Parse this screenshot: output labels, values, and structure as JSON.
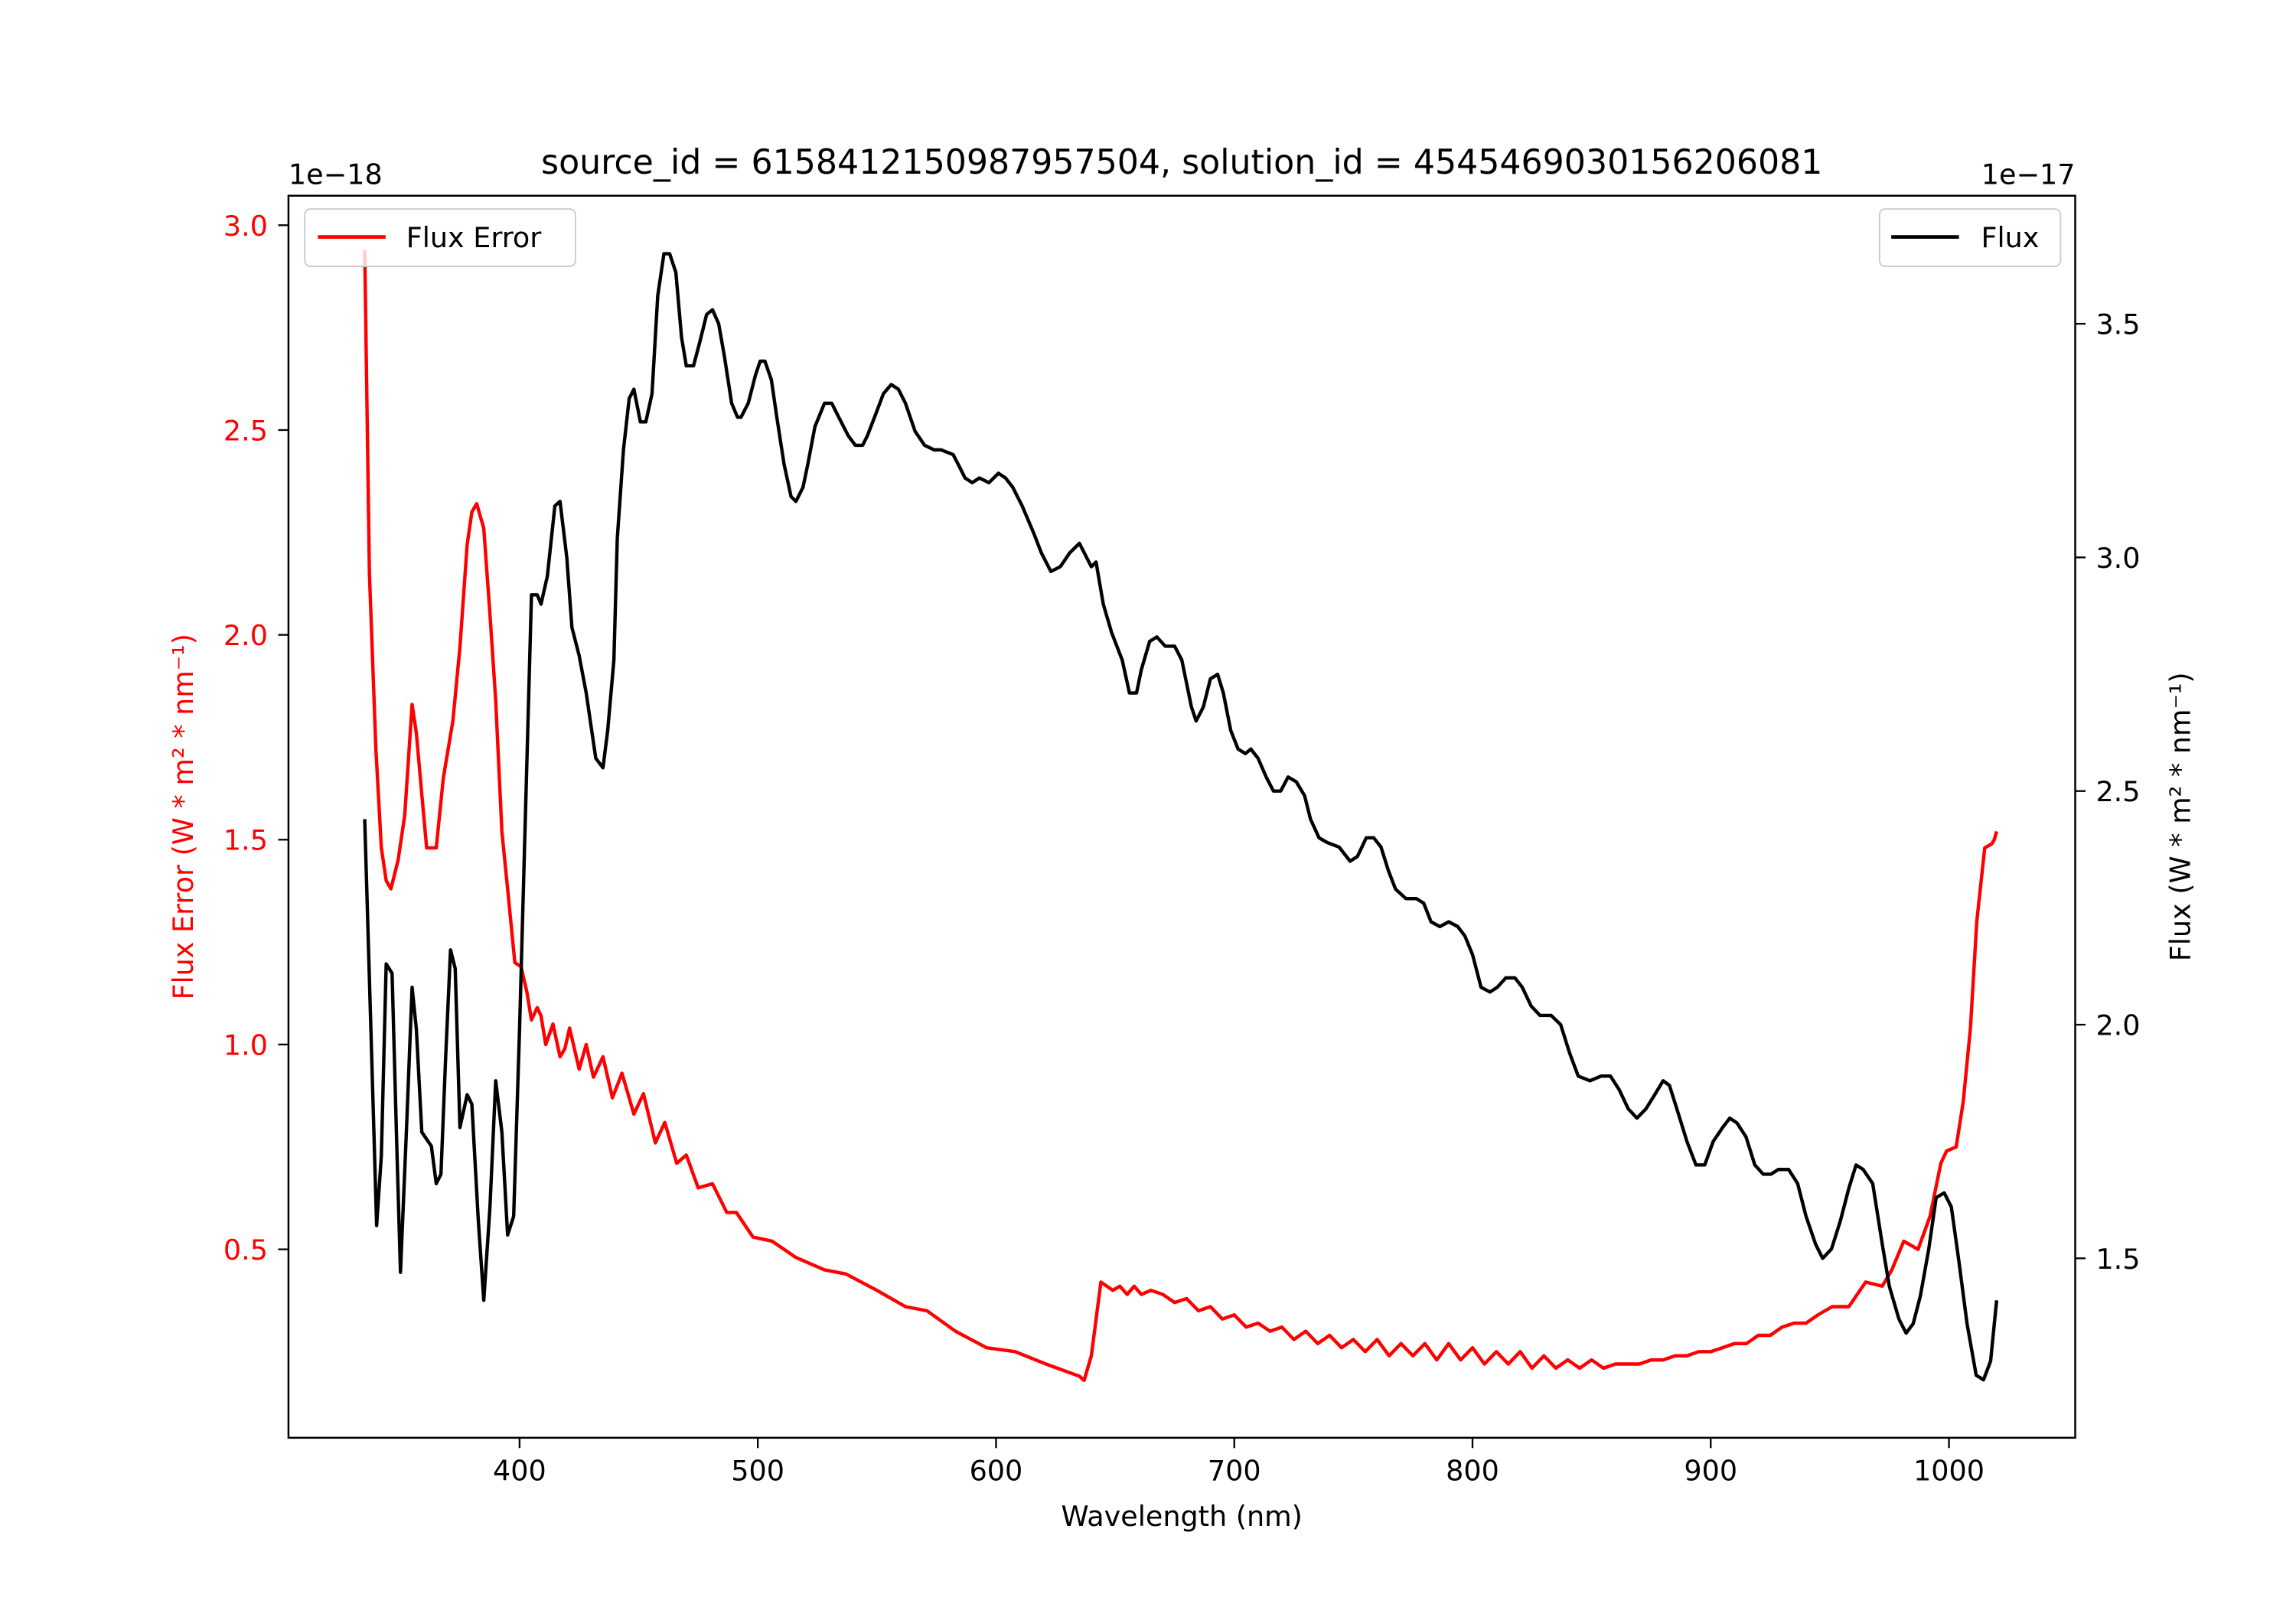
{
  "chart_data": {
    "type": "line",
    "title": "source_id = 6158412150987957504, solution_id = 4545469030156206081",
    "xlabel": "Wavelength (nm)",
    "xlim": [
      303,
      1053
    ],
    "xticks": [
      400,
      500,
      600,
      700,
      800,
      900,
      1000
    ],
    "grid": false,
    "left_axis": {
      "ylabel": "Flux Error (W * m² * nm⁻¹)",
      "offset_text": "1e−18",
      "ylim": [
        0.04,
        3.072
      ],
      "yticks": [
        0.5,
        1.0,
        1.5,
        2.0,
        2.5,
        3.0
      ],
      "ytick_labels": [
        "0.5",
        "1.0",
        "1.5",
        "2.0",
        "2.5",
        "3.0"
      ],
      "color": "#ff0000"
    },
    "right_axis": {
      "ylabel": "Flux (W * m² * nm⁻¹)",
      "offset_text": "1e−17",
      "ylim": [
        1.116,
        3.774
      ],
      "yticks": [
        1.5,
        2.0,
        2.5,
        3.0,
        3.5
      ],
      "ytick_labels": [
        "1.5",
        "2.0",
        "2.5",
        "3.0",
        "3.5"
      ],
      "color": "#000000"
    },
    "series": [
      {
        "name": "Flux Error",
        "axis": "left",
        "color": "#ff0000",
        "legend": "top-left",
        "x": [
          335,
          337,
          339.7,
          342,
          344,
          346,
          349,
          351.8,
          354.9,
          356.7,
          359,
          361,
          365,
          368,
          372,
          375,
          378,
          380,
          382,
          385,
          387.6,
          390,
          392.6,
          395,
          398,
          400.6,
          403,
          405,
          407.4,
          409,
          411,
          414,
          417,
          419,
          421,
          425,
          428,
          431,
          435,
          439,
          443,
          448,
          452,
          457,
          461,
          466,
          470,
          475,
          481,
          487,
          491,
          498,
          506,
          516,
          528,
          537,
          550,
          562,
          571,
          583,
          596,
          608,
          621,
          635,
          637,
          640,
          644,
          649,
          652,
          655,
          658,
          661,
          665,
          670,
          675,
          680,
          685,
          690,
          695,
          700,
          705,
          710,
          715,
          720,
          725,
          730,
          735,
          740,
          745,
          750,
          755,
          760,
          765,
          770,
          775,
          780,
          785,
          790,
          795,
          800,
          805,
          810,
          815,
          820,
          825,
          830,
          835,
          840,
          845,
          850,
          855,
          860,
          865,
          870,
          875,
          880,
          885,
          890,
          895,
          900,
          905,
          910,
          915,
          920,
          925,
          930,
          935,
          940,
          945,
          951,
          958,
          965,
          972,
          976,
          981,
          987,
          992,
          996.6,
          999,
          1003,
          1006,
          1009,
          1011.7,
          1015,
          1018,
          1019,
          1020
        ],
        "y": [
          2.94,
          2.15,
          1.72,
          1.48,
          1.4,
          1.38,
          1.45,
          1.56,
          1.83,
          1.76,
          1.61,
          1.48,
          1.48,
          1.65,
          1.79,
          1.97,
          2.22,
          2.3,
          2.32,
          2.26,
          2.05,
          1.84,
          1.52,
          1.38,
          1.2,
          1.19,
          1.13,
          1.06,
          1.09,
          1.07,
          1.0,
          1.05,
          0.97,
          0.99,
          1.04,
          0.94,
          1.0,
          0.92,
          0.97,
          0.87,
          0.93,
          0.83,
          0.88,
          0.76,
          0.81,
          0.71,
          0.73,
          0.65,
          0.66,
          0.59,
          0.59,
          0.53,
          0.52,
          0.48,
          0.45,
          0.44,
          0.4,
          0.36,
          0.35,
          0.3,
          0.26,
          0.25,
          0.22,
          0.19,
          0.18,
          0.24,
          0.42,
          0.4,
          0.41,
          0.39,
          0.41,
          0.39,
          0.4,
          0.39,
          0.37,
          0.38,
          0.35,
          0.36,
          0.33,
          0.34,
          0.31,
          0.32,
          0.3,
          0.31,
          0.28,
          0.3,
          0.27,
          0.29,
          0.26,
          0.28,
          0.25,
          0.28,
          0.24,
          0.27,
          0.24,
          0.27,
          0.23,
          0.27,
          0.23,
          0.26,
          0.22,
          0.25,
          0.22,
          0.25,
          0.21,
          0.24,
          0.21,
          0.23,
          0.21,
          0.23,
          0.21,
          0.22,
          0.22,
          0.22,
          0.23,
          0.23,
          0.24,
          0.24,
          0.25,
          0.25,
          0.26,
          0.27,
          0.27,
          0.29,
          0.29,
          0.31,
          0.32,
          0.32,
          0.34,
          0.36,
          0.36,
          0.42,
          0.41,
          0.45,
          0.52,
          0.5,
          0.58,
          0.71,
          0.74,
          0.75,
          0.86,
          1.04,
          1.3,
          1.48,
          1.49,
          1.5,
          1.52
        ]
      },
      {
        "name": "Flux",
        "axis": "right",
        "color": "#000000",
        "legend": "top-right",
        "x": [
          335,
          337.6,
          340,
          342,
          344,
          346.5,
          348.5,
          350,
          352.5,
          354.9,
          356.7,
          359,
          363,
          365,
          367,
          369,
          371,
          373,
          375,
          378,
          380,
          382.7,
          385,
          387.6,
          390,
          392.6,
          395,
          397.5,
          400,
          402.5,
          405,
          407.4,
          409,
          411.7,
          414.8,
          417,
          419.8,
          422,
          425,
          428,
          432,
          435,
          437,
          439.6,
          441,
          443.6,
          446,
          448,
          450.7,
          453,
          455.6,
          458,
          460.6,
          463,
          465.6,
          468,
          470,
          473,
          475.6,
          478.5,
          481,
          483.6,
          486,
          489,
          491.5,
          493,
          496,
          499,
          501,
          503,
          505.7,
          508,
          511,
          514,
          516,
          519,
          521,
          524,
          528,
          531,
          534,
          538,
          541,
          544,
          546,
          549,
          552.7,
          556,
          559,
          562,
          566,
          570,
          574,
          577,
          582,
          585,
          587,
          590,
          593,
          597,
          601,
          604,
          607,
          611,
          616,
          619,
          623,
          627,
          631,
          635,
          640,
          642,
          645,
          648.5,
          653,
          656,
          659,
          661,
          664.5,
          667.5,
          671,
          675,
          678,
          682,
          684,
          687,
          690,
          693,
          695.4,
          698.5,
          701.6,
          704.7,
          707,
          710,
          713.4,
          716.4,
          719.5,
          722.6,
          726,
          729.5,
          732,
          735.6,
          739,
          744,
          748.6,
          751.7,
          755.4,
          758.5,
          761.6,
          764.7,
          767.7,
          772,
          776.4,
          779.5,
          782.6,
          786.3,
          790,
          793.8,
          796.8,
          800,
          803.6,
          807.3,
          810.4,
          814,
          817.8,
          820.9,
          824.6,
          828.3,
          833,
          837,
          840.7,
          844.4,
          849.3,
          854,
          857.9,
          861.7,
          865.4,
          869,
          872.8,
          876.5,
          880,
          882.7,
          886.4,
          890,
          893.8,
          897.5,
          901,
          905,
          908,
          911,
          914.8,
          918.5,
          922,
          925.3,
          928.4,
          932.7,
          936.5,
          940,
          944,
          947,
          950.7,
          954.4,
          958,
          961,
          964,
          968,
          972,
          975,
          979,
          982,
          985,
          988,
          991.5,
          994.6,
          998,
          1001,
          1004,
          1007.6,
          1011.4,
          1014.5,
          1017.5,
          1020
        ],
        "y": [
          2.44,
          1.99,
          1.57,
          1.72,
          2.13,
          2.11,
          1.74,
          1.47,
          1.77,
          2.08,
          1.99,
          1.77,
          1.74,
          1.66,
          1.68,
          1.93,
          2.16,
          2.12,
          1.78,
          1.85,
          1.83,
          1.58,
          1.41,
          1.61,
          1.88,
          1.77,
          1.55,
          1.59,
          1.99,
          2.46,
          2.92,
          2.92,
          2.9,
          2.96,
          3.11,
          3.12,
          3.0,
          2.85,
          2.79,
          2.71,
          2.57,
          2.55,
          2.63,
          2.78,
          3.04,
          3.23,
          3.34,
          3.36,
          3.29,
          3.29,
          3.35,
          3.56,
          3.65,
          3.65,
          3.61,
          3.47,
          3.41,
          3.41,
          3.46,
          3.52,
          3.53,
          3.5,
          3.43,
          3.33,
          3.3,
          3.3,
          3.33,
          3.39,
          3.42,
          3.42,
          3.38,
          3.3,
          3.2,
          3.13,
          3.12,
          3.15,
          3.2,
          3.28,
          3.33,
          3.33,
          3.3,
          3.26,
          3.24,
          3.24,
          3.26,
          3.3,
          3.35,
          3.37,
          3.36,
          3.33,
          3.27,
          3.24,
          3.23,
          3.23,
          3.22,
          3.19,
          3.17,
          3.16,
          3.17,
          3.16,
          3.18,
          3.17,
          3.15,
          3.11,
          3.05,
          3.01,
          2.97,
          2.98,
          3.01,
          3.03,
          2.98,
          2.99,
          2.9,
          2.84,
          2.78,
          2.71,
          2.71,
          2.76,
          2.82,
          2.83,
          2.81,
          2.81,
          2.78,
          2.68,
          2.65,
          2.68,
          2.74,
          2.75,
          2.71,
          2.63,
          2.59,
          2.58,
          2.59,
          2.57,
          2.53,
          2.5,
          2.5,
          2.53,
          2.52,
          2.49,
          2.44,
          2.4,
          2.39,
          2.38,
          2.35,
          2.36,
          2.4,
          2.4,
          2.38,
          2.33,
          2.29,
          2.27,
          2.27,
          2.26,
          2.22,
          2.21,
          2.22,
          2.21,
          2.19,
          2.15,
          2.08,
          2.07,
          2.08,
          2.1,
          2.1,
          2.08,
          2.04,
          2.02,
          2.02,
          2.0,
          1.94,
          1.89,
          1.88,
          1.89,
          1.89,
          1.86,
          1.82,
          1.8,
          1.82,
          1.85,
          1.88,
          1.87,
          1.81,
          1.75,
          1.7,
          1.7,
          1.75,
          1.78,
          1.8,
          1.79,
          1.76,
          1.7,
          1.68,
          1.68,
          1.69,
          1.69,
          1.66,
          1.59,
          1.53,
          1.5,
          1.52,
          1.58,
          1.65,
          1.7,
          1.69,
          1.66,
          1.53,
          1.44,
          1.37,
          1.34,
          1.36,
          1.42,
          1.52,
          1.63,
          1.64,
          1.61,
          1.5,
          1.36,
          1.25,
          1.24,
          1.28,
          1.41
        ]
      }
    ]
  }
}
